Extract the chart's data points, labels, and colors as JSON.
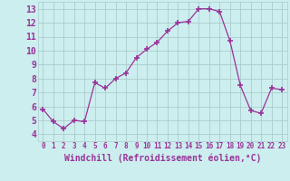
{
  "x": [
    0,
    1,
    2,
    3,
    4,
    5,
    6,
    7,
    8,
    9,
    10,
    11,
    12,
    13,
    14,
    15,
    16,
    17,
    18,
    19,
    20,
    21,
    22,
    23
  ],
  "y": [
    5.8,
    4.9,
    4.4,
    5.0,
    4.9,
    7.7,
    7.3,
    8.0,
    8.4,
    9.5,
    10.1,
    10.6,
    11.4,
    12.0,
    12.1,
    13.0,
    13.0,
    12.8,
    10.7,
    7.5,
    5.7,
    5.5,
    7.3,
    7.2
  ],
  "line_color": "#993399",
  "marker_color": "#993399",
  "bg_color": "#cceeee",
  "grid_color": "#aacccc",
  "axis_label_color": "#993399",
  "xlabel": "Windchill (Refroidissement éolien,°C)",
  "ylabel": "",
  "title": "",
  "xlim": [
    -0.5,
    23.5
  ],
  "ylim": [
    3.5,
    13.5
  ],
  "yticks": [
    4,
    5,
    6,
    7,
    8,
    9,
    10,
    11,
    12,
    13
  ],
  "xticks": [
    0,
    1,
    2,
    3,
    4,
    5,
    6,
    7,
    8,
    9,
    10,
    11,
    12,
    13,
    14,
    15,
    16,
    17,
    18,
    19,
    20,
    21,
    22,
    23
  ],
  "tick_color": "#993399",
  "xtick_fontsize": 5.5,
  "ytick_fontsize": 7,
  "xlabel_fontsize": 7
}
